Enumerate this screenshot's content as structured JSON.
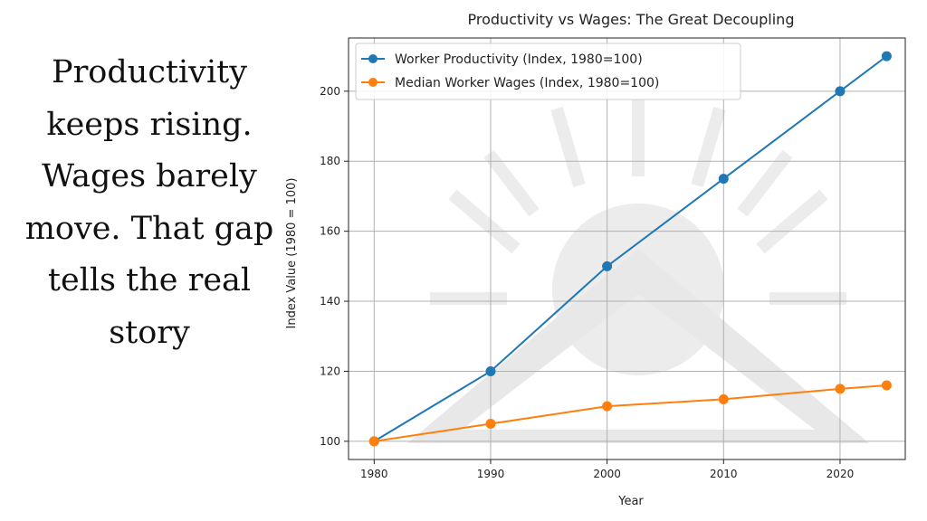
{
  "caption": "Productivity keeps rising. Wages barely move. That gap tells the real story",
  "chart_data": {
    "type": "line",
    "title": "Productivity vs Wages: The Great Decoupling",
    "xlabel": "Year",
    "ylabel": "Index Value (1980 = 100)",
    "x": [
      1980,
      1990,
      2000,
      2010,
      2020,
      2024
    ],
    "series": [
      {
        "name": "Worker Productivity (Index, 1980=100)",
        "color": "#1f77b4",
        "values": [
          100,
          120,
          150,
          175,
          200,
          210
        ]
      },
      {
        "name": "Median Worker Wages (Index, 1980=100)",
        "color": "#ff7f0e",
        "values": [
          100,
          105,
          110,
          112,
          115,
          116
        ]
      }
    ],
    "xticks": [
      1980,
      1990,
      2000,
      2010,
      2020
    ],
    "yticks": [
      100,
      120,
      140,
      160,
      180,
      200
    ],
    "xlim": [
      1977.8,
      2025.6
    ],
    "ylim": [
      94.8,
      215.2
    ],
    "grid": true,
    "legend": "top-left"
  }
}
